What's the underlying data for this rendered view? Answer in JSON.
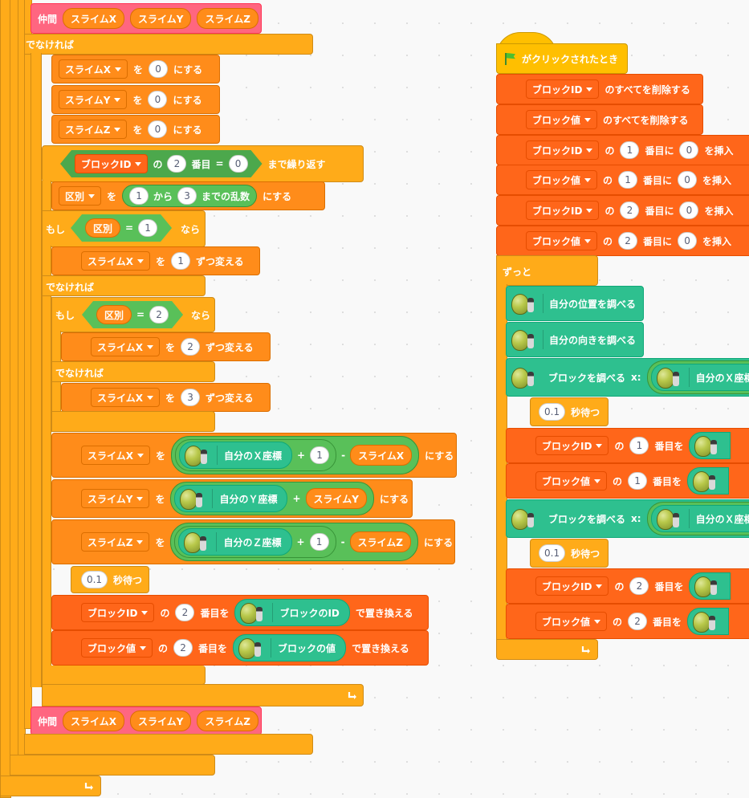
{
  "labels": {
    "otherwise": "でなければ",
    "if": "もし",
    "then": "なら",
    "to": "を",
    "set_suffix": "にする",
    "change_by": "ずつ変える",
    "of": "の",
    "index_suffix": "番目",
    "repeat_until": "まで繰り返す",
    "from": "から",
    "random_range": "までの乱数",
    "wait_sec": "秒待つ",
    "replace_at": "番目を",
    "replace_with": "で置き換える",
    "forever": "ずっと",
    "when_flag": "がクリックされたとき",
    "delete_all": "のすべてを削除する",
    "insert_at": "番目に",
    "insert_suffix": "を挿入",
    "check_position": "自分の位置を調べる",
    "check_direction": "自分の向きを調べる",
    "check_block": "ブロックを調べる",
    "x_label": "x:",
    "x_pos": "自分のＸ座標",
    "y_pos": "自分のＹ座標",
    "z_pos": "自分のＺ座標",
    "x_pos_cut": "自分のＸ座標",
    "block_id": "ブロックのID",
    "block_value": "ブロックの値",
    "plus": "+",
    "minus": "-",
    "equals": "="
  },
  "custom_block": {
    "name": "仲間",
    "args": [
      "スライムX",
      "スライムY",
      "スライムZ"
    ]
  },
  "vars": {
    "slimeX": "スライムX",
    "slimeY": "スライムY",
    "slimeZ": "スライムZ",
    "kubetsu": "区別"
  },
  "lists": {
    "block_id": "ブロックID",
    "block_val": "ブロック値"
  },
  "nums": {
    "zero": "0",
    "one": "1",
    "two": "2",
    "three": "3",
    "wait": "0.1"
  },
  "icons": [
    "green-flag-icon",
    "loop-arrow-icon",
    "sprite-thumbnail-icon",
    "dropdown-caret-icon"
  ],
  "colors": {
    "control": "#ffab19",
    "variables": "#ff8c1a",
    "lists": "#ff661a",
    "operators": "#59c059",
    "sensing": "#2ec08f",
    "events": "#ffbf00",
    "custom": "#ff6680"
  }
}
